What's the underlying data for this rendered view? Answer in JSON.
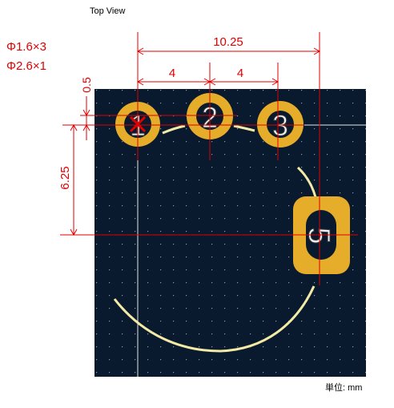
{
  "header": {
    "view_title": "Top View"
  },
  "notes": {
    "hole_spec_1": "Φ1.6×3",
    "hole_spec_2": "Φ2.6×1"
  },
  "dimensions": {
    "overall_span": "10.25",
    "pitch_1_2": "4",
    "pitch_2_3": "4",
    "vertical_offset": "0.5",
    "vertical_depth": "6.25"
  },
  "pads": [
    {
      "label": "1",
      "shape": "round"
    },
    {
      "label": "2",
      "shape": "round"
    },
    {
      "label": "3",
      "shape": "round"
    },
    {
      "label": "5",
      "shape": "rounded-rectangle"
    }
  ],
  "footer": {
    "units": "単位: mm"
  },
  "colors": {
    "board": "#0a1a2e",
    "pad": "#e6ad2b",
    "silkscreen": "#f3eaa6",
    "dimension": "#e00000",
    "grid_dot": "#8a97a8"
  }
}
